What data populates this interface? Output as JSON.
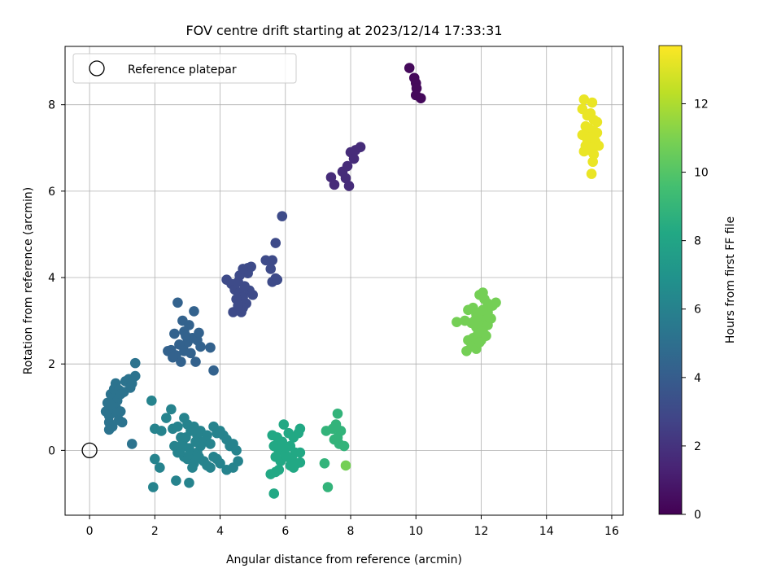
{
  "chart_data": {
    "type": "scatter",
    "title": "FOV centre drift starting at 2023/12/14 17:33:31",
    "xlabel": "Angular distance from reference (arcmin)",
    "ylabel": "Rotation from reference (arcmin)",
    "colorbar_label": "Hours from first FF file",
    "xlim": [
      -0.75,
      16.35
    ],
    "ylim": [
      -1.5,
      9.35
    ],
    "xticks": [
      0,
      2,
      4,
      6,
      8,
      10,
      12,
      14,
      16
    ],
    "yticks": [
      0,
      2,
      4,
      6,
      8
    ],
    "colorbar_range": [
      0,
      13.7
    ],
    "colorbar_ticks": [
      0,
      2,
      4,
      6,
      8,
      10,
      12
    ],
    "colormap": "viridis",
    "grid": true,
    "legend": {
      "position": "top-left",
      "entries": [
        "Reference platepar"
      ]
    },
    "reference_point": {
      "x": 0,
      "y": 0
    },
    "clusters": [
      {
        "time": 0.3,
        "points": [
          [
            9.8,
            8.85
          ],
          [
            9.95,
            8.62
          ],
          [
            10.0,
            8.5
          ],
          [
            10.02,
            8.38
          ],
          [
            10.0,
            8.22
          ],
          [
            10.15,
            8.15
          ]
        ]
      },
      {
        "time": 1.7,
        "points": [
          [
            7.4,
            6.32
          ],
          [
            7.5,
            6.15
          ],
          [
            7.75,
            6.45
          ],
          [
            7.85,
            6.3
          ],
          [
            7.9,
            6.58
          ],
          [
            7.95,
            6.12
          ],
          [
            8.0,
            6.9
          ],
          [
            8.1,
            6.75
          ],
          [
            8.15,
            6.95
          ],
          [
            8.3,
            7.02
          ]
        ]
      },
      {
        "time": 3.1,
        "points": [
          [
            5.9,
            5.42
          ],
          [
            5.7,
            4.8
          ],
          [
            5.4,
            4.4
          ],
          [
            5.6,
            4.4
          ],
          [
            5.55,
            4.2
          ],
          [
            5.7,
            3.98
          ],
          [
            5.6,
            3.9
          ],
          [
            5.75,
            3.95
          ],
          [
            4.2,
            3.95
          ],
          [
            4.35,
            3.85
          ],
          [
            4.45,
            3.72
          ],
          [
            4.6,
            3.65
          ],
          [
            4.7,
            3.55
          ],
          [
            4.8,
            3.4
          ],
          [
            4.9,
            3.7
          ],
          [
            5.0,
            3.6
          ],
          [
            4.55,
            3.9
          ],
          [
            4.75,
            3.8
          ],
          [
            4.85,
            4.1
          ],
          [
            4.95,
            4.25
          ],
          [
            4.6,
            4.05
          ],
          [
            4.5,
            3.5
          ],
          [
            4.4,
            3.2
          ],
          [
            4.65,
            3.2
          ],
          [
            4.7,
            3.3
          ],
          [
            4.55,
            3.35
          ],
          [
            4.85,
            4.22
          ],
          [
            4.7,
            4.2
          ]
        ]
      },
      {
        "time": 4.3,
        "points": [
          [
            2.7,
            3.42
          ],
          [
            3.2,
            3.22
          ],
          [
            2.85,
            3.0
          ],
          [
            3.05,
            2.9
          ],
          [
            2.6,
            2.7
          ],
          [
            2.9,
            2.75
          ],
          [
            3.15,
            2.6
          ],
          [
            3.3,
            2.55
          ],
          [
            3.0,
            2.5
          ],
          [
            2.75,
            2.45
          ],
          [
            3.4,
            2.4
          ],
          [
            2.4,
            2.3
          ],
          [
            2.5,
            2.32
          ],
          [
            2.65,
            2.2
          ],
          [
            2.9,
            2.3
          ],
          [
            3.1,
            2.25
          ],
          [
            3.7,
            2.38
          ],
          [
            2.8,
            2.05
          ],
          [
            3.25,
            2.05
          ],
          [
            3.8,
            1.85
          ],
          [
            2.95,
            2.65
          ],
          [
            3.35,
            2.72
          ],
          [
            2.55,
            2.15
          ]
        ]
      },
      {
        "time": 5.2,
        "points": [
          [
            0.8,
            1.55
          ],
          [
            0.65,
            1.3
          ],
          [
            0.75,
            1.42
          ],
          [
            0.9,
            1.4
          ],
          [
            0.55,
            1.1
          ],
          [
            0.7,
            1.2
          ],
          [
            0.85,
            1.15
          ],
          [
            0.95,
            1.3
          ],
          [
            1.05,
            1.35
          ],
          [
            1.1,
            1.6
          ],
          [
            1.2,
            1.65
          ],
          [
            1.3,
            1.55
          ],
          [
            1.4,
            2.02
          ],
          [
            1.4,
            1.72
          ],
          [
            1.25,
            1.45
          ],
          [
            0.5,
            0.9
          ],
          [
            0.6,
            0.8
          ],
          [
            0.75,
            0.95
          ],
          [
            0.85,
            0.85
          ],
          [
            0.6,
            0.65
          ],
          [
            0.7,
            0.55
          ],
          [
            0.9,
            0.7
          ],
          [
            1.0,
            0.65
          ],
          [
            0.6,
            0.48
          ],
          [
            1.3,
            0.15
          ],
          [
            0.8,
            1.0
          ],
          [
            0.65,
            1.05
          ],
          [
            0.95,
            0.9
          ]
        ]
      },
      {
        "time": 6.1,
        "points": [
          [
            1.9,
            1.15
          ],
          [
            2.0,
            0.5
          ],
          [
            2.2,
            0.45
          ],
          [
            2.35,
            0.75
          ],
          [
            2.5,
            0.95
          ],
          [
            2.55,
            0.5
          ],
          [
            2.7,
            0.55
          ],
          [
            2.8,
            0.3
          ],
          [
            2.9,
            0.75
          ],
          [
            3.0,
            0.6
          ],
          [
            3.1,
            0.45
          ],
          [
            3.2,
            0.55
          ],
          [
            3.3,
            0.35
          ],
          [
            3.4,
            0.45
          ],
          [
            3.5,
            0.2
          ],
          [
            3.6,
            0.35
          ],
          [
            3.7,
            0.15
          ],
          [
            3.8,
            0.55
          ],
          [
            3.9,
            0.4
          ],
          [
            4.0,
            0.45
          ],
          [
            4.1,
            0.35
          ],
          [
            4.2,
            0.25
          ],
          [
            4.3,
            0.1
          ],
          [
            4.4,
            0.15
          ],
          [
            4.5,
            0.0
          ],
          [
            2.6,
            0.1
          ],
          [
            2.7,
            -0.05
          ],
          [
            2.8,
            0.05
          ],
          [
            2.9,
            -0.15
          ],
          [
            3.0,
            -0.2
          ],
          [
            3.1,
            -0.1
          ],
          [
            3.2,
            -0.3
          ],
          [
            3.3,
            -0.05
          ],
          [
            3.4,
            0.1
          ],
          [
            3.5,
            -0.25
          ],
          [
            3.6,
            -0.35
          ],
          [
            3.7,
            -0.4
          ],
          [
            3.8,
            -0.15
          ],
          [
            3.9,
            -0.2
          ],
          [
            4.0,
            -0.3
          ],
          [
            4.2,
            -0.45
          ],
          [
            4.4,
            -0.4
          ],
          [
            4.55,
            -0.25
          ],
          [
            2.0,
            -0.2
          ],
          [
            2.15,
            -0.4
          ],
          [
            1.95,
            -0.85
          ],
          [
            2.65,
            -0.7
          ],
          [
            3.05,
            -0.75
          ],
          [
            3.15,
            -0.4
          ],
          [
            2.85,
            0.15
          ],
          [
            3.25,
            0.2
          ],
          [
            3.05,
            0.05
          ],
          [
            2.95,
            0.3
          ],
          [
            3.35,
            -0.15
          ]
        ]
      },
      {
        "time": 8.2,
        "points": [
          [
            5.6,
            0.35
          ],
          [
            5.75,
            0.3
          ],
          [
            5.95,
            0.6
          ],
          [
            6.1,
            0.4
          ],
          [
            6.25,
            0.3
          ],
          [
            6.45,
            0.5
          ],
          [
            6.4,
            0.4
          ],
          [
            5.65,
            0.1
          ],
          [
            5.8,
            0.0
          ],
          [
            5.9,
            0.2
          ],
          [
            6.0,
            0.05
          ],
          [
            6.15,
            0.1
          ],
          [
            6.3,
            -0.05
          ],
          [
            6.45,
            -0.05
          ],
          [
            5.7,
            -0.15
          ],
          [
            5.85,
            -0.25
          ],
          [
            6.0,
            -0.1
          ],
          [
            6.2,
            -0.2
          ],
          [
            6.35,
            -0.3
          ],
          [
            6.45,
            -0.28
          ],
          [
            5.55,
            -0.55
          ],
          [
            5.7,
            -0.5
          ],
          [
            5.8,
            -0.45
          ],
          [
            6.05,
            -0.15
          ],
          [
            6.25,
            -0.4
          ],
          [
            5.65,
            -1.0
          ],
          [
            6.15,
            -0.35
          ]
        ]
      },
      {
        "time": 8.9,
        "points": [
          [
            7.6,
            0.85
          ],
          [
            7.55,
            0.6
          ],
          [
            7.7,
            0.45
          ],
          [
            7.25,
            0.45
          ],
          [
            7.45,
            0.5
          ],
          [
            7.5,
            0.25
          ],
          [
            7.65,
            0.15
          ],
          [
            7.8,
            0.1
          ],
          [
            7.6,
            0.3
          ],
          [
            7.2,
            -0.3
          ],
          [
            7.3,
            -0.85
          ]
        ]
      },
      {
        "time": 10.8,
        "points": [
          [
            7.85,
            -0.35
          ],
          [
            11.25,
            2.97
          ],
          [
            11.5,
            3.0
          ],
          [
            11.6,
            3.25
          ],
          [
            11.75,
            3.3
          ],
          [
            11.85,
            3.15
          ],
          [
            11.95,
            3.6
          ],
          [
            12.05,
            3.65
          ],
          [
            12.1,
            3.5
          ],
          [
            12.2,
            3.4
          ],
          [
            12.35,
            3.35
          ],
          [
            12.45,
            3.42
          ],
          [
            11.7,
            2.95
          ],
          [
            11.85,
            2.85
          ],
          [
            12.0,
            2.9
          ],
          [
            12.1,
            3.05
          ],
          [
            12.2,
            2.9
          ],
          [
            12.3,
            3.05
          ],
          [
            11.6,
            2.55
          ],
          [
            11.75,
            2.6
          ],
          [
            11.9,
            2.7
          ],
          [
            12.0,
            2.55
          ],
          [
            12.05,
            2.75
          ],
          [
            12.15,
            2.65
          ],
          [
            11.55,
            2.3
          ],
          [
            11.7,
            2.4
          ],
          [
            11.85,
            2.35
          ],
          [
            11.95,
            2.5
          ],
          [
            12.2,
            3.2
          ],
          [
            11.9,
            3.1
          ],
          [
            12.05,
            3.25
          ],
          [
            11.8,
            3.0
          ]
        ]
      },
      {
        "time": 13.3,
        "points": [
          [
            15.15,
            8.12
          ],
          [
            15.4,
            8.05
          ],
          [
            15.1,
            7.9
          ],
          [
            15.25,
            7.75
          ],
          [
            15.35,
            7.8
          ],
          [
            15.45,
            7.65
          ],
          [
            15.55,
            7.6
          ],
          [
            15.2,
            7.5
          ],
          [
            15.3,
            7.45
          ],
          [
            15.45,
            7.4
          ],
          [
            15.55,
            7.35
          ],
          [
            15.1,
            7.3
          ],
          [
            15.25,
            7.2
          ],
          [
            15.35,
            7.25
          ],
          [
            15.5,
            7.15
          ],
          [
            15.6,
            7.05
          ],
          [
            15.2,
            7.05
          ],
          [
            15.3,
            6.95
          ],
          [
            15.4,
            7.0
          ],
          [
            15.45,
            6.85
          ],
          [
            15.15,
            6.92
          ],
          [
            15.42,
            6.68
          ],
          [
            15.38,
            6.4
          ]
        ]
      }
    ]
  }
}
